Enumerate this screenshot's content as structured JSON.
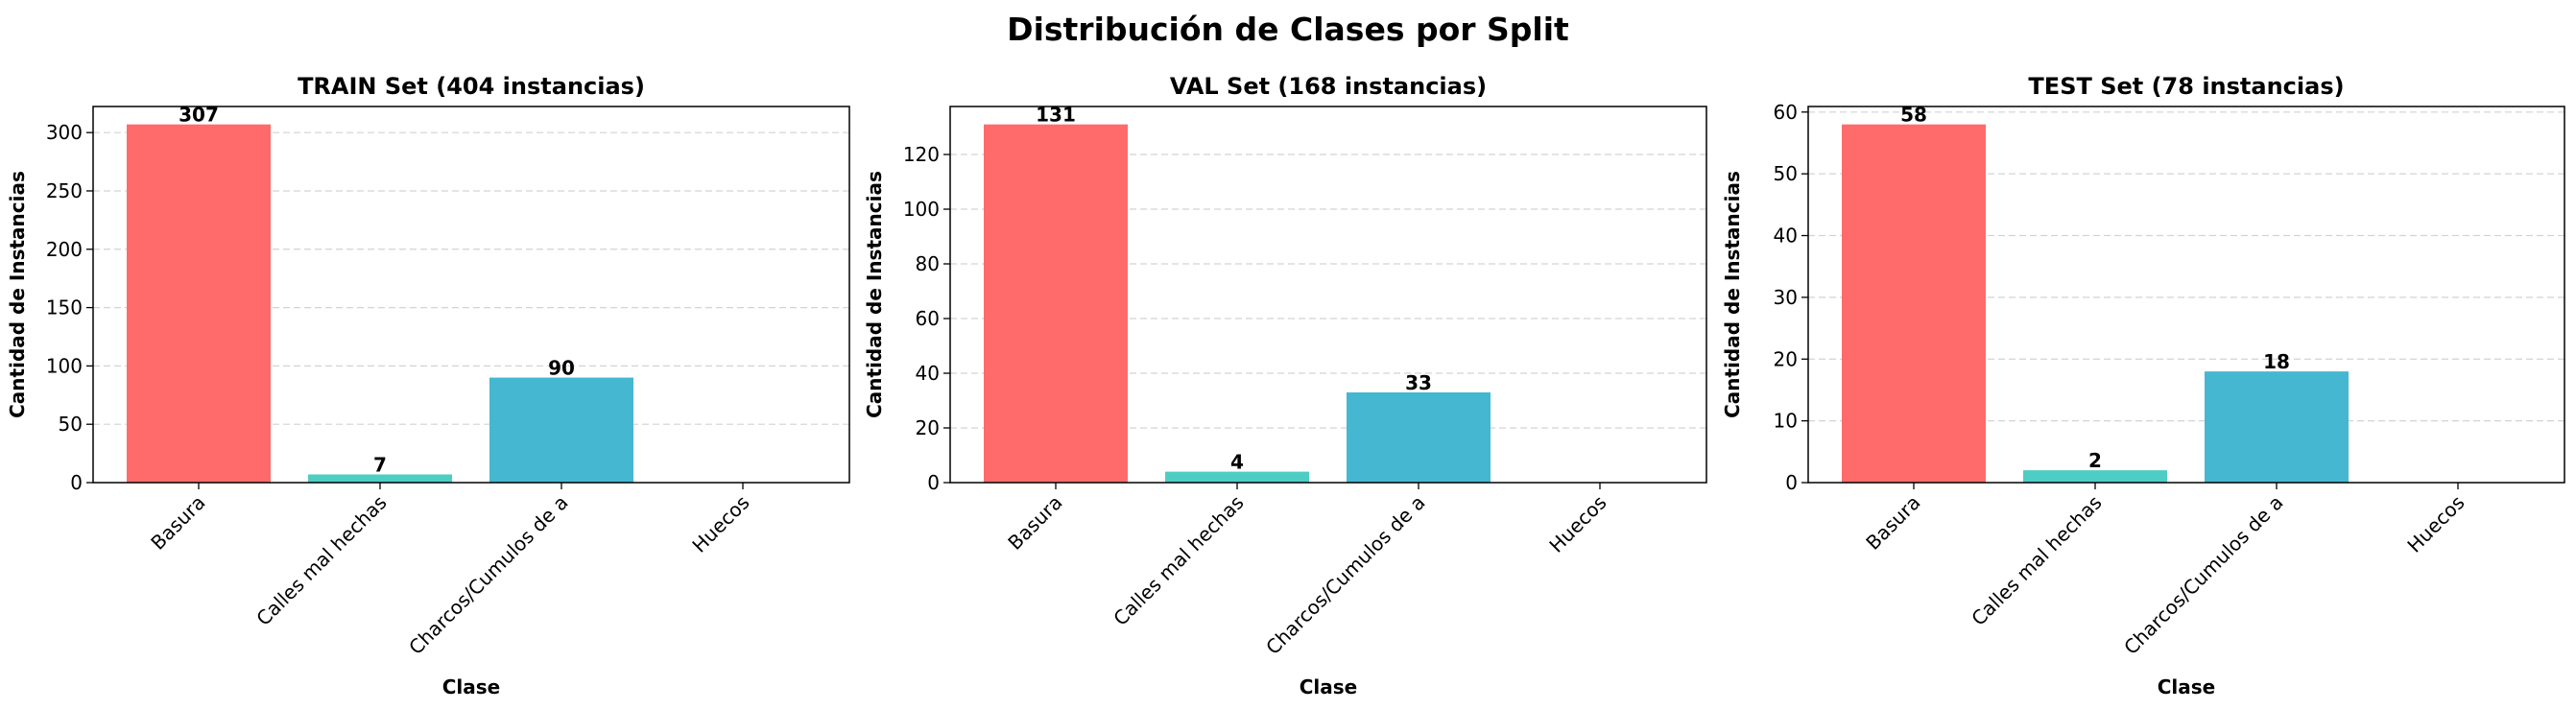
{
  "figure": {
    "suptitle": "Distribución de Clases por Split"
  },
  "chart_data": [
    {
      "type": "bar",
      "title": "TRAIN Set (404 instancias)",
      "xlabel": "Clase",
      "ylabel": "Cantidad de Instancias",
      "categories": [
        "Basura",
        "Calles mal hechas",
        "Charcos/Cumulos de a",
        "Huecos"
      ],
      "values": [
        307,
        7,
        90,
        0
      ],
      "value_labels": [
        "307",
        "7",
        "90",
        ""
      ],
      "bar_colors": [
        "#FF6B6B",
        "#4ECDC4",
        "#45B7D1",
        "#FFA07A"
      ],
      "ylim": [
        0,
        322.35
      ],
      "yticks": [
        0,
        50,
        100,
        150,
        200,
        250,
        300
      ],
      "grid": "y-dashed"
    },
    {
      "type": "bar",
      "title": "VAL Set (168 instancias)",
      "xlabel": "Clase",
      "ylabel": "Cantidad de Instancias",
      "categories": [
        "Basura",
        "Calles mal hechas",
        "Charcos/Cumulos de a",
        "Huecos"
      ],
      "values": [
        131,
        4,
        33,
        0
      ],
      "value_labels": [
        "131",
        "4",
        "33",
        ""
      ],
      "bar_colors": [
        "#FF6B6B",
        "#4ECDC4",
        "#45B7D1",
        "#FFA07A"
      ],
      "ylim": [
        0,
        137.55
      ],
      "yticks": [
        0,
        20,
        40,
        60,
        80,
        100,
        120
      ],
      "grid": "y-dashed"
    },
    {
      "type": "bar",
      "title": "TEST Set (78 instancias)",
      "xlabel": "Clase",
      "ylabel": "Cantidad de Instancias",
      "categories": [
        "Basura",
        "Calles mal hechas",
        "Charcos/Cumulos de a",
        "Huecos"
      ],
      "values": [
        58,
        2,
        18,
        0
      ],
      "value_labels": [
        "58",
        "2",
        "18",
        ""
      ],
      "bar_colors": [
        "#FF6B6B",
        "#4ECDC4",
        "#45B7D1",
        "#FFA07A"
      ],
      "ylim": [
        0,
        60.9
      ],
      "yticks": [
        0,
        10,
        20,
        30,
        40,
        50,
        60
      ],
      "grid": "y-dashed"
    }
  ]
}
